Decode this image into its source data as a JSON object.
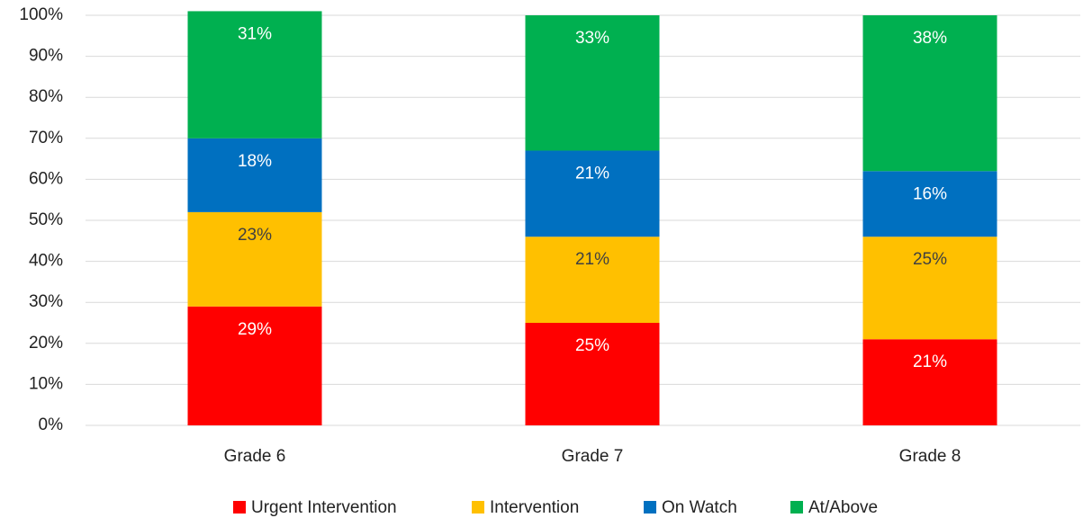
{
  "chart_data": {
    "type": "bar",
    "stacked": true,
    "categories": [
      "Grade 6",
      "Grade 7",
      "Grade 8"
    ],
    "series": [
      {
        "name": "Urgent Intervention",
        "color": "#ff0000",
        "label_color": "#ffffff",
        "values": [
          29,
          25,
          21
        ],
        "labels": [
          "29%",
          "25%",
          "21%"
        ]
      },
      {
        "name": "Intervention",
        "color": "#ffc000",
        "label_color": "#404040",
        "values": [
          23,
          21,
          25
        ],
        "labels": [
          "23%",
          "21%",
          "25%"
        ]
      },
      {
        "name": "On Watch",
        "color": "#0070c0",
        "label_color": "#ffffff",
        "values": [
          18,
          21,
          16
        ],
        "labels": [
          "18%",
          "21%",
          "16%"
        ]
      },
      {
        "name": "At/Above",
        "color": "#00b050",
        "label_color": "#ffffff",
        "values": [
          31,
          33,
          38
        ],
        "labels": [
          "31%",
          "33%",
          "38%"
        ]
      }
    ],
    "ylim": [
      0,
      100
    ],
    "y_ticks": [
      "0%",
      "10%",
      "20%",
      "30%",
      "40%",
      "50%",
      "60%",
      "70%",
      "80%",
      "90%",
      "100%"
    ],
    "grid": true,
    "legend_position": "bottom",
    "title": "",
    "xlabel": "",
    "ylabel": ""
  }
}
